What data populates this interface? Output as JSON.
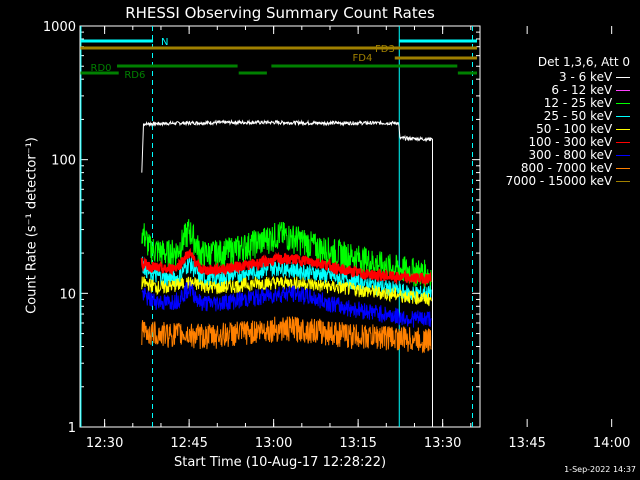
{
  "chart_data": {
    "type": "line",
    "title": "RHESSI Observing Summary Count Rates",
    "xlabel": "Start Time (10-Aug-17 12:28:22)",
    "ylabel": "Count Rate (s⁻¹ detector⁻¹)",
    "yscale": "log",
    "ylim": [
      1,
      1000
    ],
    "xlim_minutes": [
      -2.37,
      68.63
    ],
    "x_tick_labels": [
      "12:30",
      "12:45",
      "13:00",
      "13:15",
      "13:30",
      "13:45",
      "14:00"
    ],
    "y_tick_labels": [
      "1",
      "10",
      "100",
      "1000"
    ],
    "legend_header": "Det 1,3,6, Att 0",
    "series": [
      {
        "name": "3 - 6 keV",
        "color": "#ffffff",
        "points": [
          [
            8.6,
            80
          ],
          [
            8.9,
            185
          ],
          [
            16,
            188
          ],
          [
            24,
            190
          ],
          [
            32,
            190
          ],
          [
            40,
            188
          ],
          [
            48,
            188
          ],
          [
            54.2,
            188
          ],
          [
            54.4,
            145
          ],
          [
            60,
            142
          ],
          [
            60.2,
            1
          ]
        ]
      },
      {
        "name": "6 - 12 keV",
        "color": "#ff40ff",
        "points": []
      },
      {
        "name": "12 - 25 keV",
        "color": "#00ff00",
        "points": [
          [
            8.6,
            30
          ],
          [
            10,
            22
          ],
          [
            13,
            20
          ],
          [
            15,
            21
          ],
          [
            17,
            30
          ],
          [
            19,
            20
          ],
          [
            22,
            20
          ],
          [
            26,
            22
          ],
          [
            30,
            25
          ],
          [
            33,
            28
          ],
          [
            36,
            26
          ],
          [
            40,
            22
          ],
          [
            44,
            20
          ],
          [
            48,
            18
          ],
          [
            52,
            16
          ],
          [
            56,
            15
          ],
          [
            60,
            14
          ]
        ]
      },
      {
        "name": "25 - 50 keV",
        "color": "#00ffff",
        "points": [
          [
            8.6,
            17
          ],
          [
            10,
            14
          ],
          [
            13,
            13
          ],
          [
            15,
            13
          ],
          [
            17,
            17
          ],
          [
            19,
            13
          ],
          [
            22,
            13
          ],
          [
            26,
            14
          ],
          [
            30,
            15
          ],
          [
            33,
            16
          ],
          [
            36,
            15
          ],
          [
            40,
            14
          ],
          [
            44,
            13
          ],
          [
            48,
            12
          ],
          [
            52,
            11
          ],
          [
            56,
            10
          ],
          [
            60,
            10
          ]
        ]
      },
      {
        "name": "50 - 100 keV",
        "color": "#ffff00",
        "points": [
          [
            8.6,
            12
          ],
          [
            12,
            11
          ],
          [
            17,
            12
          ],
          [
            22,
            11
          ],
          [
            30,
            12
          ],
          [
            36,
            12
          ],
          [
            44,
            11
          ],
          [
            52,
            10
          ],
          [
            60,
            9
          ]
        ]
      },
      {
        "name": "100 - 300 keV",
        "color": "#ff0000",
        "points": [
          [
            8.6,
            17
          ],
          [
            10,
            16
          ],
          [
            13,
            15
          ],
          [
            15,
            16
          ],
          [
            17,
            20
          ],
          [
            19,
            15
          ],
          [
            22,
            15
          ],
          [
            26,
            16
          ],
          [
            30,
            17
          ],
          [
            33,
            18
          ],
          [
            36,
            18
          ],
          [
            40,
            17
          ],
          [
            44,
            15
          ],
          [
            48,
            14
          ],
          [
            52,
            13.5
          ],
          [
            56,
            13
          ],
          [
            60,
            13
          ]
        ]
      },
      {
        "name": "300 - 800 keV",
        "color": "#0000ff",
        "points": [
          [
            8.6,
            10
          ],
          [
            10,
            9
          ],
          [
            13,
            8.5
          ],
          [
            15,
            9
          ],
          [
            17,
            11
          ],
          [
            19,
            8.5
          ],
          [
            22,
            8.5
          ],
          [
            26,
            9
          ],
          [
            30,
            9.5
          ],
          [
            33,
            10
          ],
          [
            36,
            10
          ],
          [
            40,
            9
          ],
          [
            44,
            8
          ],
          [
            48,
            7.5
          ],
          [
            52,
            7
          ],
          [
            56,
            6.5
          ],
          [
            60,
            6.5
          ]
        ]
      },
      {
        "name": "800 - 7000 keV",
        "color": "#ff8000",
        "points": [
          [
            8.6,
            5.2
          ],
          [
            12,
            5
          ],
          [
            16,
            5
          ],
          [
            20,
            4.8
          ],
          [
            24,
            5
          ],
          [
            28,
            5.2
          ],
          [
            32,
            5.5
          ],
          [
            36,
            5.5
          ],
          [
            40,
            5.3
          ],
          [
            44,
            5
          ],
          [
            48,
            4.8
          ],
          [
            52,
            4.8
          ],
          [
            56,
            4.6
          ],
          [
            60,
            4.5
          ]
        ]
      },
      {
        "name": "7000 - 15000 keV",
        "color": "#a08000",
        "points": []
      }
    ],
    "flag_bars": [
      {
        "label": "N",
        "color": "#00ffff",
        "segments": [
          [
            -2.3,
            10.6
          ],
          [
            54.3,
            68.1
          ]
        ]
      },
      {
        "label": "FD3",
        "color": "#a08000",
        "segments": [
          [
            -2.3,
            68.1
          ]
        ]
      },
      {
        "label": "FD4",
        "color": "#a08000",
        "segments": [
          [
            53.5,
            68.1
          ]
        ]
      },
      {
        "label": "RD0",
        "color": "#008000",
        "segments": [
          [
            4.2,
            25.6
          ],
          [
            31.6,
            64.6
          ]
        ]
      },
      {
        "label": "RD6",
        "color": "#008000",
        "segments": [
          [
            -2.3,
            4.5
          ],
          [
            25.8,
            30.8
          ],
          [
            64.7,
            68.1
          ]
        ]
      }
    ],
    "vertical_markers": [
      {
        "x": -2.2,
        "color": "#00ffff",
        "style": "solid"
      },
      {
        "x": 10.5,
        "color": "#00ffff",
        "style": "dashed"
      },
      {
        "x": 54.3,
        "color": "#00ffff",
        "style": "solid"
      },
      {
        "x": 67.3,
        "color": "#00ffff",
        "style": "dashed"
      }
    ],
    "grid": false,
    "legend": "right"
  },
  "footer_timestamp": "1-Sep-2022 14:37"
}
